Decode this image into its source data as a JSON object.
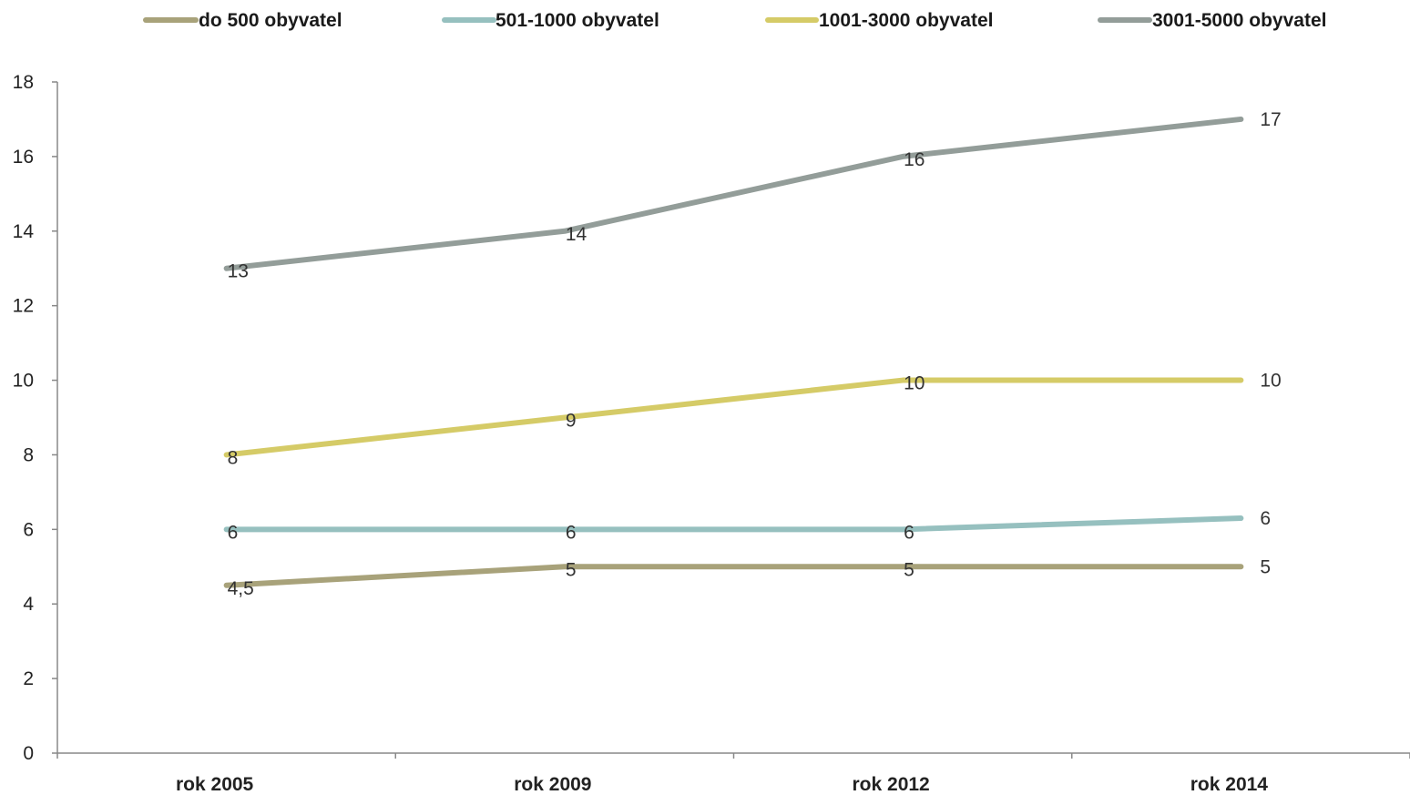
{
  "chart_data": {
    "type": "line",
    "categories": [
      "rok 2005",
      "rok 2009",
      "rok 2012",
      "rok 2014"
    ],
    "series": [
      {
        "name": "do 500 obyvatel",
        "values": [
          4.5,
          5,
          5,
          5
        ],
        "labels": [
          "4,5",
          "5",
          "5",
          "5"
        ],
        "color": "#a8a27a"
      },
      {
        "name": "501-1000 obyvatel",
        "values": [
          6,
          6,
          6,
          6.3
        ],
        "labels": [
          "6",
          "6",
          "6",
          "6"
        ],
        "color": "#96c0bf"
      },
      {
        "name": "1001-3000 obyvatel",
        "values": [
          8,
          9,
          10,
          10
        ],
        "labels": [
          "8",
          "9",
          "10",
          "10"
        ],
        "color": "#d5cb67"
      },
      {
        "name": "3001-5000 obyvatel",
        "values": [
          13,
          14,
          16,
          17
        ],
        "labels": [
          "13",
          "14",
          "16",
          "17"
        ],
        "color": "#939d99"
      }
    ],
    "yticks": [
      "0",
      "2",
      "4",
      "6",
      "8",
      "10",
      "12",
      "14",
      "16",
      "18"
    ],
    "ylim": [
      0,
      18
    ],
    "grid": false,
    "legend_position": "top"
  }
}
